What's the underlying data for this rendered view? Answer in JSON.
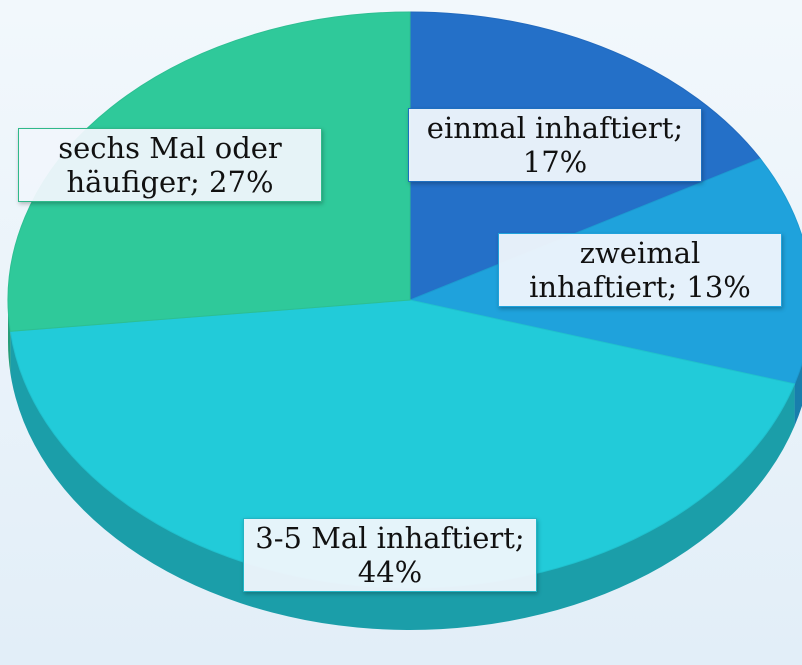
{
  "chart_data": {
    "type": "pie",
    "labels": [
      "einmal inhaftiert; 17%",
      "zweimal inhaftiert; 13%",
      "3-5 Mal inhaftiert; 44%",
      "sechs Mal oder häufiger; 27%"
    ],
    "values": [
      17,
      13,
      44,
      27
    ],
    "colors": [
      "#2470c8",
      "#1fa2dc",
      "#22cbd9",
      "#2fc99a"
    ],
    "start_angle": 0,
    "direction": "clockwise"
  }
}
